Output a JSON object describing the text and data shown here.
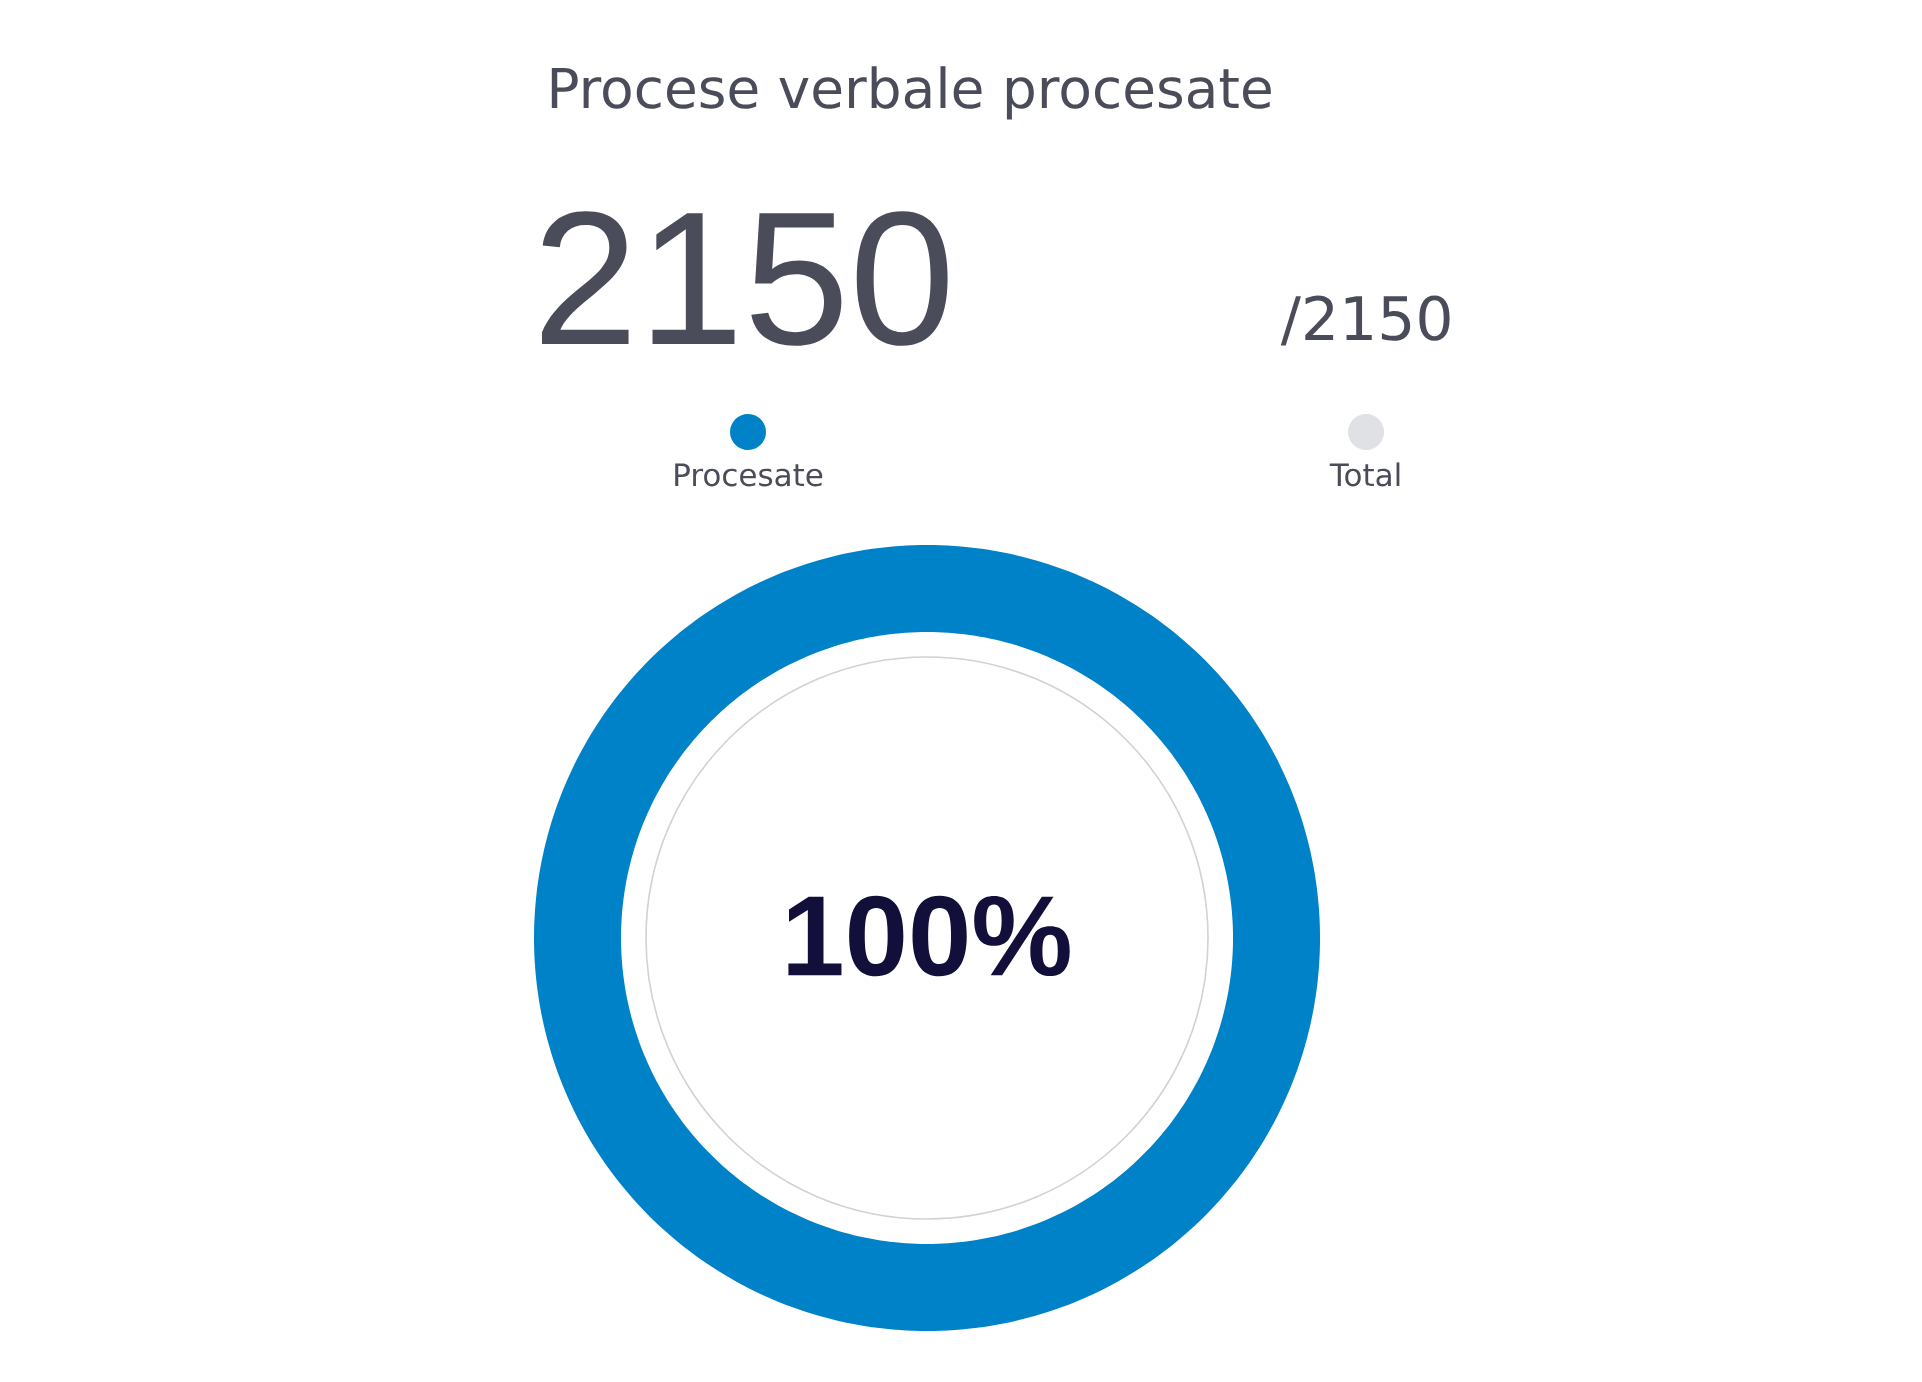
{
  "chart_data": {
    "type": "donut",
    "title": "Procese verbale procesate",
    "categories": [
      "Procesate",
      "Total"
    ],
    "values": [
      100,
      0
    ],
    "colors": [
      "#0082c8",
      "#e0e1e4"
    ],
    "legend": "top",
    "annotations": [
      "2150",
      "/2150",
      "100%"
    ]
  }
}
